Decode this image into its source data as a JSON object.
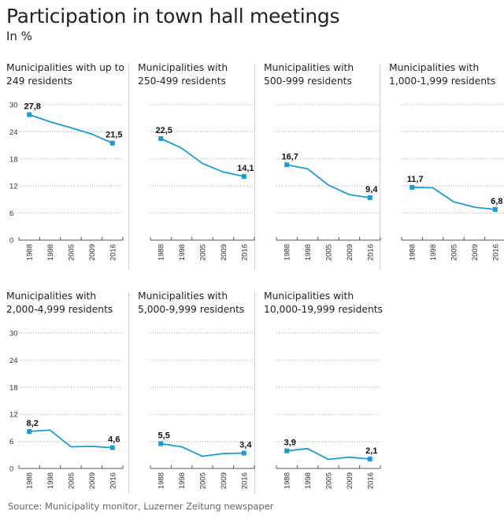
{
  "header": {
    "title": "Participation in town hall meetings",
    "subtitle": "In %"
  },
  "footer": {
    "source": "Source: Municipality monitor, Luzerner Zeitung newspaper"
  },
  "colors": {
    "line": "#1a9ad6",
    "grid": "#aaaaaa",
    "axis": "#555555"
  },
  "chart_data": [
    {
      "type": "line",
      "title": "Municipalities with up to 249 residents",
      "title_lines": [
        "Municipalities with up to",
        "249 residents"
      ],
      "x": [
        "1988",
        "1998",
        "2005",
        "2009",
        "2016"
      ],
      "values": [
        27.8,
        26.2,
        24.9,
        23.5,
        21.5
      ],
      "data_labels": {
        "first": "27,8",
        "last": "21,5"
      },
      "yticks": [
        "0",
        "6",
        "12",
        "18",
        "24",
        "30"
      ],
      "ylim": [
        0,
        30
      ],
      "show_yticks": true,
      "grid": true
    },
    {
      "type": "line",
      "title": "Municipalities with 250-499 residents",
      "title_lines": [
        "Municipalities with",
        "250-499 residents"
      ],
      "x": [
        "1988",
        "1998",
        "2005",
        "2009",
        "2016"
      ],
      "values": [
        22.5,
        20.4,
        17.0,
        15.1,
        14.1
      ],
      "data_labels": {
        "first": "22,5",
        "last": "14,1"
      },
      "yticks": [
        "0",
        "6",
        "12",
        "18",
        "24",
        "30"
      ],
      "ylim": [
        0,
        30
      ],
      "show_yticks": false,
      "grid": true
    },
    {
      "type": "line",
      "title": "Municipalities with 500-999 residents",
      "title_lines": [
        "Municipalities with",
        "500-999 residents"
      ],
      "x": [
        "1988",
        "1998",
        "2005",
        "2009",
        "2016"
      ],
      "values": [
        16.7,
        15.8,
        12.2,
        10.1,
        9.4
      ],
      "data_labels": {
        "first": "16,7",
        "last": "9,4"
      },
      "yticks": [
        "0",
        "6",
        "12",
        "18",
        "24",
        "30"
      ],
      "ylim": [
        0,
        30
      ],
      "show_yticks": false,
      "grid": true
    },
    {
      "type": "line",
      "title": "Municipalities with 1,000-1,999 residents",
      "title_lines": [
        "Municipalities with",
        "1,000-1,999 residents"
      ],
      "x": [
        "1988",
        "1998",
        "2005",
        "2009",
        "2016"
      ],
      "values": [
        11.7,
        11.6,
        8.5,
        7.3,
        6.8
      ],
      "data_labels": {
        "first": "11,7",
        "last": "6,8"
      },
      "yticks": [
        "0",
        "6",
        "12",
        "18",
        "24",
        "30"
      ],
      "ylim": [
        0,
        30
      ],
      "show_yticks": false,
      "grid": true
    },
    {
      "type": "line",
      "title": "Municipalities with 2,000-4,999 residents",
      "title_lines": [
        "Municipalities with",
        "2,000-4,999 residents"
      ],
      "x": [
        "1988",
        "1998",
        "2005",
        "2009",
        "2016"
      ],
      "values": [
        8.2,
        8.5,
        4.8,
        4.9,
        4.6
      ],
      "data_labels": {
        "first": "8,2",
        "last": "4,6"
      },
      "yticks": [
        "0",
        "6",
        "12",
        "18",
        "24",
        "30"
      ],
      "ylim": [
        0,
        30
      ],
      "show_yticks": true,
      "grid": true
    },
    {
      "type": "line",
      "title": "Municipalities with 5,000-9,999 residents",
      "title_lines": [
        "Municipalities with",
        "5,000-9,999 residents"
      ],
      "x": [
        "1988",
        "1998",
        "2005",
        "2009",
        "2016"
      ],
      "values": [
        5.5,
        4.8,
        2.7,
        3.3,
        3.4
      ],
      "data_labels": {
        "first": "5,5",
        "last": "3,4"
      },
      "yticks": [
        "0",
        "6",
        "12",
        "18",
        "24",
        "30"
      ],
      "ylim": [
        0,
        30
      ],
      "show_yticks": false,
      "grid": true
    },
    {
      "type": "line",
      "title": "Municipalities with 10,000-19,999 residents",
      "title_lines": [
        "Municipalities with",
        "10,000-19,999 residents"
      ],
      "x": [
        "1988",
        "1998",
        "2005",
        "2009",
        "2016"
      ],
      "values": [
        3.9,
        4.4,
        2.0,
        2.5,
        2.1
      ],
      "data_labels": {
        "first": "3,9",
        "last": "2,1"
      },
      "yticks": [
        "0",
        "6",
        "12",
        "18",
        "24",
        "30"
      ],
      "ylim": [
        0,
        30
      ],
      "show_yticks": false,
      "grid": true
    }
  ]
}
